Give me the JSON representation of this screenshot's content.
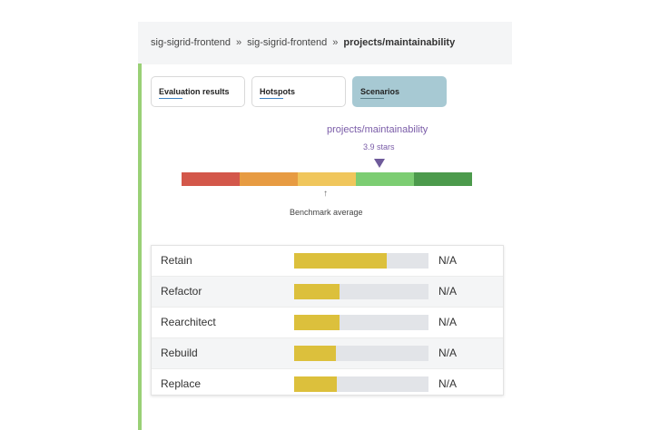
{
  "breadcrumb": {
    "items": [
      "sig-sigrid-frontend",
      "sig-sigrid-frontend"
    ],
    "separator": "»",
    "current": "projects/maintainability"
  },
  "tabs": [
    {
      "label": "Evaluation results",
      "active": false
    },
    {
      "label": "Hotspots",
      "active": false
    },
    {
      "label": "Scenarios",
      "active": true
    }
  ],
  "rating": {
    "project": "projects/maintainability",
    "stars_label": "3.9 stars",
    "stars": 3.9,
    "scale_min": 0.5,
    "scale_max": 5.5,
    "colors": [
      "#d3574a",
      "#e79b42",
      "#f0c65c",
      "#7ccd72",
      "#4c9a4c"
    ],
    "benchmark_arrow": "↑",
    "benchmark_label": "Benchmark average"
  },
  "scenarios": [
    {
      "label": "Retain",
      "fill": 0.69,
      "value": "N/A"
    },
    {
      "label": "Refactor",
      "fill": 0.34,
      "value": "N/A"
    },
    {
      "label": "Rearchitect",
      "fill": 0.34,
      "value": "N/A"
    },
    {
      "label": "Rebuild",
      "fill": 0.31,
      "value": "N/A"
    },
    {
      "label": "Replace",
      "fill": 0.32,
      "value": "N/A"
    }
  ],
  "colors": {
    "accent": "#9ad076",
    "active_tab": "#a7c9d3",
    "progress_fill": "#dcc03c",
    "progress_track": "#e2e4e8",
    "marker": "#6e5a9a"
  }
}
